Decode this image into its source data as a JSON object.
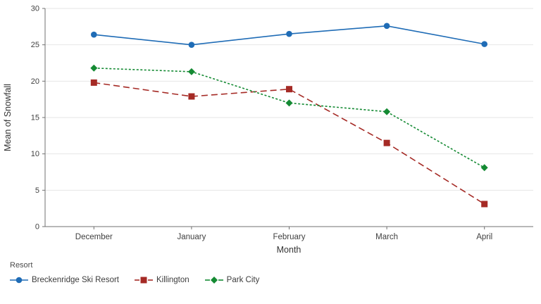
{
  "chart_data": {
    "type": "line",
    "title": "",
    "xlabel": "Month",
    "ylabel": "Mean of Snowfall",
    "legend_title": "Resort",
    "legend_position": "bottom-left",
    "categories": [
      "December",
      "January",
      "February",
      "March",
      "April"
    ],
    "yticks": [
      0,
      5,
      10,
      15,
      20,
      25,
      30
    ],
    "ylim": [
      0,
      30
    ],
    "grid": "horizontal",
    "colors": {
      "grid": "#e6e6e6",
      "axis": "#707070",
      "tick_label": "#404040",
      "axis_title": "#333333"
    },
    "series": [
      {
        "name": "Breckenridge Ski Resort",
        "marker": "circle",
        "line_style": "solid",
        "color": "#1f6cb6",
        "values": [
          26.4,
          25.0,
          26.5,
          27.6,
          25.1
        ]
      },
      {
        "name": "Killington",
        "marker": "square",
        "line_style": "dashed",
        "color": "#a52a25",
        "values": [
          19.8,
          17.9,
          18.9,
          11.5,
          3.1
        ]
      },
      {
        "name": "Park City",
        "marker": "diamond",
        "line_style": "dotted",
        "color": "#148a33",
        "values": [
          21.8,
          21.3,
          17.0,
          15.8,
          8.1
        ]
      }
    ]
  }
}
